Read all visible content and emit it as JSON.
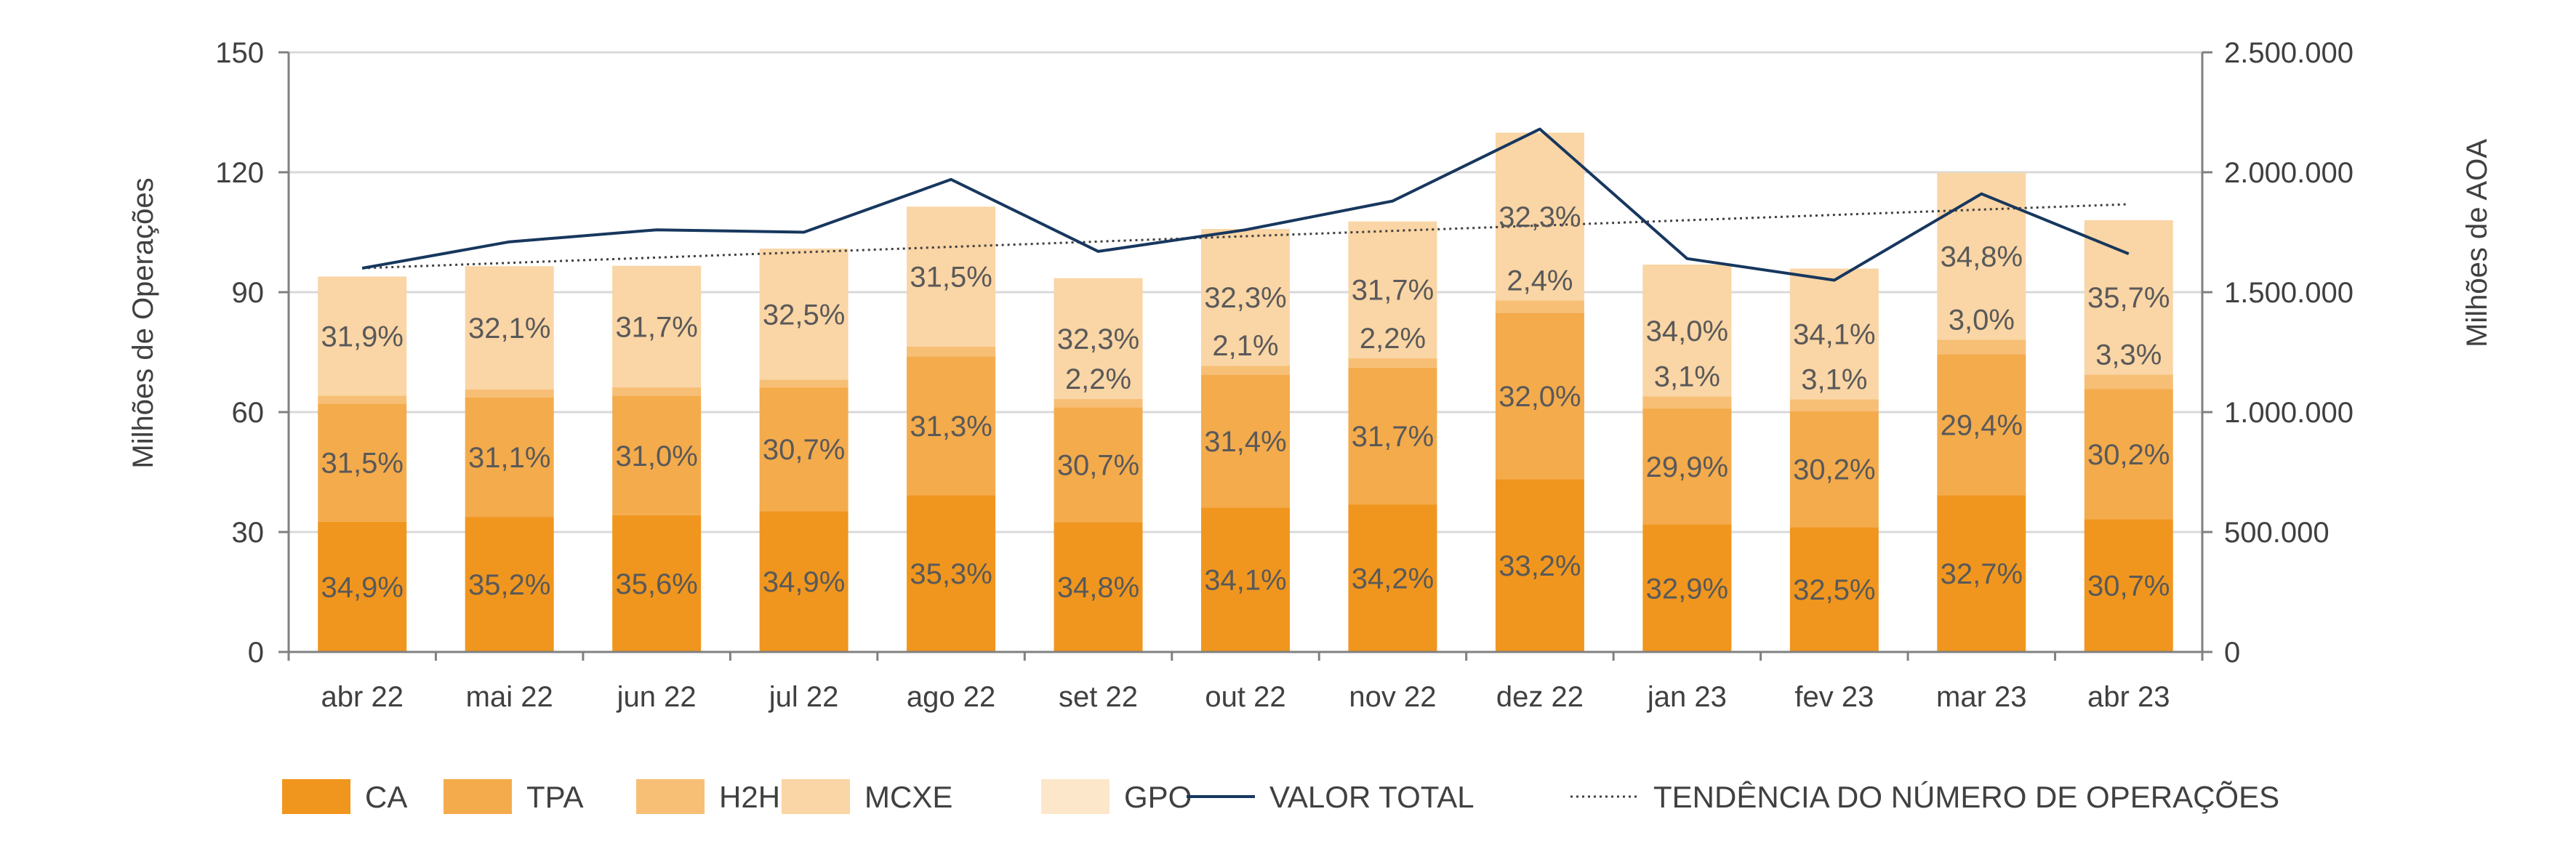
{
  "chart_data": {
    "type": "bar",
    "stacked": true,
    "categories": [
      "abr 22",
      "mai 22",
      "jun 22",
      "jul 22",
      "ago 22",
      "set 22",
      "out 22",
      "nov 22",
      "dez 22",
      "jan 23",
      "fev 23",
      "mar 23",
      "abr 23"
    ],
    "totals": [
      93.5,
      96,
      96,
      101,
      111,
      93.5,
      106,
      108,
      130,
      97,
      96,
      120,
      108
    ],
    "series": [
      {
        "name": "CA",
        "color": "#F0961E",
        "percent_labels": [
          "34,9%",
          "35,2%",
          "35,6%",
          "34,9%",
          "35,3%",
          "34,8%",
          "34,1%",
          "34,2%",
          "33,2%",
          "32,9%",
          "32,5%",
          "32,7%",
          "30,7%"
        ]
      },
      {
        "name": "TPA",
        "color": "#F4AB4C",
        "percent_labels": [
          "31,5%",
          "31,1%",
          "31,0%",
          "30,7%",
          "31,3%",
          "30,7%",
          "31,4%",
          "31,7%",
          "32,0%",
          "29,9%",
          "30,2%",
          "29,4%",
          "30,2%"
        ]
      },
      {
        "name": "H2H",
        "color": "#F7BF75",
        "percent_labels": [
          "",
          "",
          "",
          "",
          "",
          "2,2%",
          "2,1%",
          "2,2%",
          "2,4%",
          "3,1%",
          "3,1%",
          "3,0%",
          "3,3%"
        ]
      },
      {
        "name": "MCXE",
        "color": "#FAD5A5",
        "percent_labels": [
          "31,9%",
          "32,1%",
          "31,7%",
          "32,5%",
          "31,5%",
          "32,3%",
          "32,3%",
          "31,7%",
          "32,3%",
          "34,0%",
          "34,1%",
          "34,8%",
          "35,7%"
        ]
      },
      {
        "name": "GPO",
        "color": "#FDE7CB",
        "percent_labels": [
          "",
          "",
          "",
          "",
          "",
          "",
          "",
          "",
          "",
          "",
          "",
          "",
          ""
        ]
      }
    ],
    "segment_values": {
      "CA": [
        32.6,
        33.8,
        34.2,
        35.2,
        39.2,
        32.5,
        36.1,
        36.9,
        43.2,
        31.9,
        31.2,
        39.2,
        33.2
      ],
      "TPA": [
        29.5,
        29.9,
        29.8,
        31.0,
        34.7,
        28.7,
        33.3,
        34.2,
        41.6,
        29.0,
        29.0,
        35.3,
        32.6
      ],
      "H2H": [
        2.0,
        2.0,
        2.2,
        1.9,
        2.5,
        2.1,
        2.2,
        2.4,
        3.1,
        3.0,
        3.0,
        3.6,
        3.6
      ],
      "MCXE": [
        29.8,
        30.8,
        30.4,
        32.8,
        35.0,
        30.2,
        34.2,
        34.2,
        42.0,
        33.0,
        32.7,
        41.8,
        38.6
      ],
      "GPO": [
        0,
        0,
        0,
        0,
        0,
        0,
        0,
        0,
        0,
        0,
        0,
        0,
        0
      ]
    },
    "line_series": {
      "name": "VALOR TOTAL",
      "color": "#17375E",
      "axis": "right",
      "values": [
        1600000,
        1710000,
        1760000,
        1750000,
        1970000,
        1670000,
        1760000,
        1880000,
        2180000,
        1640000,
        1550000,
        1910000,
        1660000
      ]
    },
    "trend_series": {
      "name": "TENDÊNCIA DO NÚMERO DE OPERAÇÕES",
      "color": "#404040",
      "style": "dotted",
      "start": 96,
      "end": 112
    },
    "y_left": {
      "label": "Milhões de Operações",
      "min": 0,
      "max": 150,
      "ticks": [
        "0",
        "30",
        "60",
        "90",
        "120",
        "150"
      ],
      "tick_values": [
        0,
        30,
        60,
        90,
        120,
        150
      ]
    },
    "y_right": {
      "label": "Milhões de AOA",
      "min": 0,
      "max": 2500000,
      "ticks": [
        "0",
        "500.000",
        "1.000.000",
        "1.500.000",
        "2.000.000",
        "2.500.000"
      ],
      "tick_values": [
        0,
        500000,
        1000000,
        1500000,
        2000000,
        2500000
      ]
    },
    "grid": true,
    "legend": {
      "position": "bottom",
      "items": [
        {
          "label": "CA",
          "kind": "box",
          "color": "#F0961E"
        },
        {
          "label": "TPA",
          "kind": "box",
          "color": "#F4AB4C"
        },
        {
          "label": "H2H",
          "kind": "box",
          "color": "#F7BF75"
        },
        {
          "label": "MCXE",
          "kind": "box",
          "color": "#FAD5A5"
        },
        {
          "label": "GPO",
          "kind": "box",
          "color": "#FDE7CB"
        },
        {
          "label": "VALOR TOTAL",
          "kind": "line",
          "color": "#17375E"
        },
        {
          "label": "TENDÊNCIA DO NÚMERO DE OPERAÇÕES",
          "kind": "dotted",
          "color": "#404040"
        }
      ]
    }
  }
}
